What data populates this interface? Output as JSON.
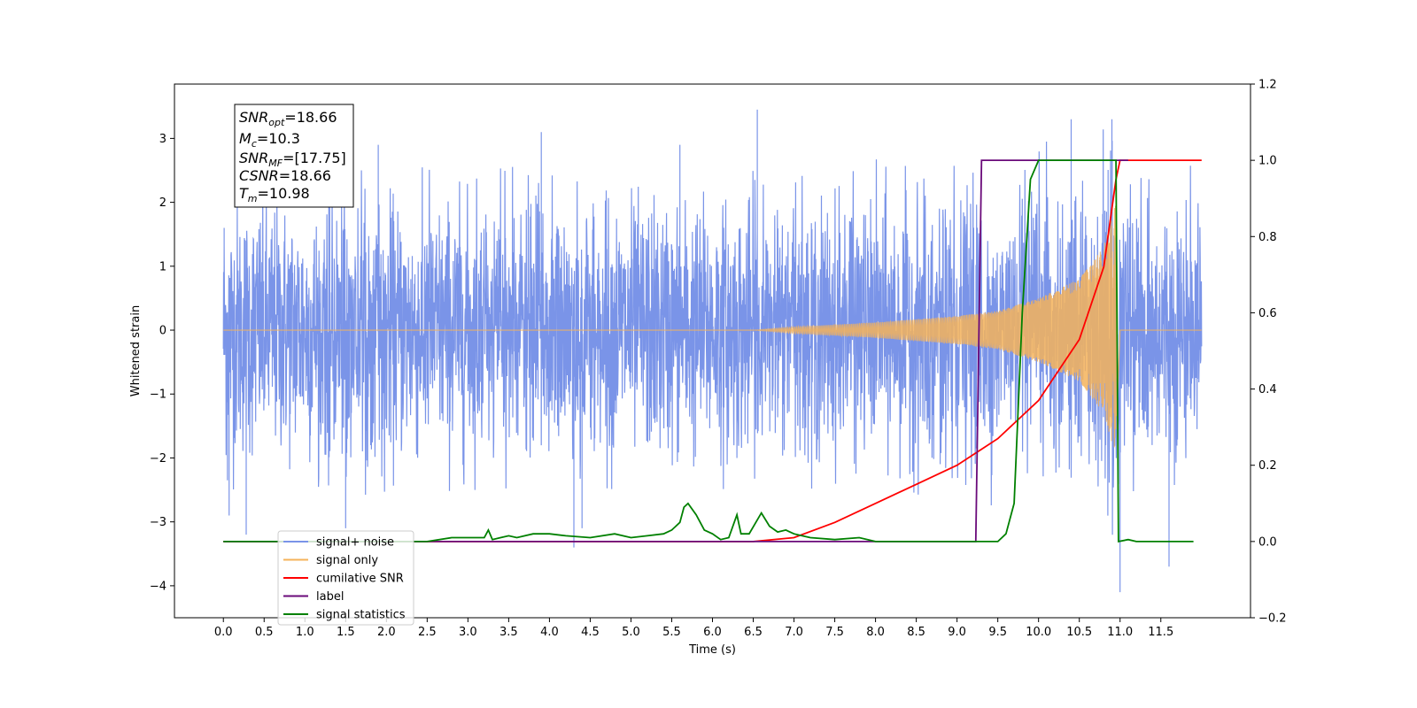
{
  "chart_data": {
    "type": "line",
    "xlabel": "Time (s)",
    "ylabel_left": "Whitened strain",
    "ylabel_right": "",
    "xlim": [
      -0.6,
      12.6
    ],
    "ylim_left": [
      -4.5,
      3.85
    ],
    "ylim_right": [
      -0.2,
      1.2
    ],
    "x_ticks": [
      "0.0",
      "0.5",
      "1.0",
      "1.5",
      "2.0",
      "2.5",
      "3.0",
      "3.5",
      "4.0",
      "4.5",
      "5.0",
      "5.5",
      "6.0",
      "6.5",
      "7.0",
      "7.5",
      "8.0",
      "8.5",
      "9.0",
      "9.5",
      "10.0",
      "10.5",
      "11.0",
      "11.5"
    ],
    "y_ticks_left": [
      "3",
      "2",
      "1",
      "0",
      "−1",
      "−2",
      "−3",
      "−4"
    ],
    "y_ticks_right": [
      "1.2",
      "1.0",
      "0.8",
      "0.6",
      "0.4",
      "0.2",
      "0.0",
      "−0.2"
    ],
    "grid": false,
    "legend_position": "lower-left",
    "annotation": {
      "snr_opt": {
        "base": "SNR",
        "sub": "opt",
        "value": "=18.66"
      },
      "mc": {
        "base": "M",
        "sub": "c",
        "value": "=10.3"
      },
      "snr_mf": {
        "base": "SNR",
        "sub": "MF",
        "value": "=[17.75]"
      },
      "csnr": {
        "base": "CSNR",
        "sub": "",
        "value": "=18.66"
      },
      "tm": {
        "base": "T",
        "sub": "m",
        "value": "=10.98"
      }
    },
    "series": [
      {
        "name": "signal+ noise",
        "axis": "left",
        "color": "#7a94e8",
        "description_shape": "dense noise roughly between -2.5 and 2.5 with spikes up to 3.45 and down to -4.1",
        "x_range": [
          0.0,
          12.0
        ],
        "spikes": [
          [
            0.01,
            1.6
          ],
          [
            0.05,
            -2.35
          ],
          [
            0.07,
            -2.9
          ],
          [
            0.28,
            -3.2
          ],
          [
            1.5,
            -3.1
          ],
          [
            1.9,
            2.9
          ],
          [
            3.9,
            3.1
          ],
          [
            4.3,
            -3.4
          ],
          [
            4.4,
            -3.1
          ],
          [
            6.55,
            3.45
          ],
          [
            5.6,
            2.9
          ],
          [
            10.4,
            3.3
          ],
          [
            10.9,
            3.3
          ],
          [
            11.0,
            -4.1
          ],
          [
            11.6,
            -3.7
          ]
        ]
      },
      {
        "name": "signal only",
        "axis": "left",
        "color": "#f5b35a",
        "description_shape": "chirp; zero until ~6.5 s, amplitude grows to about ±2.0 at 10.95 s then ends abruptly",
        "x_range": [
          0.0,
          12.0
        ],
        "envelope_points": [
          [
            6.5,
            0.0
          ],
          [
            7.0,
            0.05
          ],
          [
            8.0,
            0.12
          ],
          [
            9.0,
            0.22
          ],
          [
            9.5,
            0.3
          ],
          [
            10.0,
            0.5
          ],
          [
            10.5,
            0.8
          ],
          [
            10.8,
            1.3
          ],
          [
            10.95,
            2.0
          ],
          [
            11.0,
            0.0
          ]
        ]
      },
      {
        "name": "cumilative SNR",
        "axis": "right",
        "color": "#ff0000",
        "x": [
          0.0,
          6.5,
          7.0,
          7.5,
          8.0,
          8.5,
          9.0,
          9.5,
          10.0,
          10.5,
          10.8,
          10.95,
          11.0,
          12.0
        ],
        "values": [
          0.0,
          0.0,
          0.01,
          0.05,
          0.1,
          0.15,
          0.2,
          0.27,
          0.37,
          0.53,
          0.72,
          0.95,
          1.0,
          1.0
        ]
      },
      {
        "name": "label",
        "axis": "right",
        "color": "#6a0a7a",
        "x": [
          0.0,
          9.23,
          9.3,
          11.0,
          11.1
        ],
        "values": [
          0.0,
          0.0,
          1.0,
          1.0,
          1.0
        ]
      },
      {
        "name": "signal statistics",
        "axis": "right",
        "color": "#008000",
        "x": [
          0.0,
          2.5,
          2.8,
          3.0,
          3.2,
          3.25,
          3.3,
          3.4,
          3.5,
          3.6,
          3.8,
          4.0,
          4.2,
          4.5,
          4.8,
          5.0,
          5.2,
          5.4,
          5.5,
          5.6,
          5.65,
          5.7,
          5.8,
          5.9,
          6.0,
          6.1,
          6.2,
          6.3,
          6.35,
          6.45,
          6.6,
          6.7,
          6.8,
          6.9,
          7.0,
          7.1,
          7.2,
          7.5,
          7.8,
          8.0,
          9.5,
          9.6,
          9.7,
          9.8,
          9.9,
          10.0,
          10.95,
          10.98,
          11.1,
          11.2,
          11.5,
          11.9
        ],
        "values": [
          0.0,
          0.0,
          0.01,
          0.01,
          0.01,
          0.03,
          0.005,
          0.01,
          0.015,
          0.01,
          0.02,
          0.02,
          0.015,
          0.01,
          0.02,
          0.01,
          0.015,
          0.02,
          0.03,
          0.05,
          0.09,
          0.1,
          0.07,
          0.03,
          0.02,
          0.005,
          0.01,
          0.07,
          0.02,
          0.02,
          0.075,
          0.04,
          0.025,
          0.03,
          0.02,
          0.015,
          0.01,
          0.005,
          0.01,
          0.0,
          0.0,
          0.02,
          0.1,
          0.6,
          0.95,
          1.0,
          1.0,
          0.0,
          0.005,
          0.0,
          0.0,
          0.0
        ]
      }
    ]
  }
}
